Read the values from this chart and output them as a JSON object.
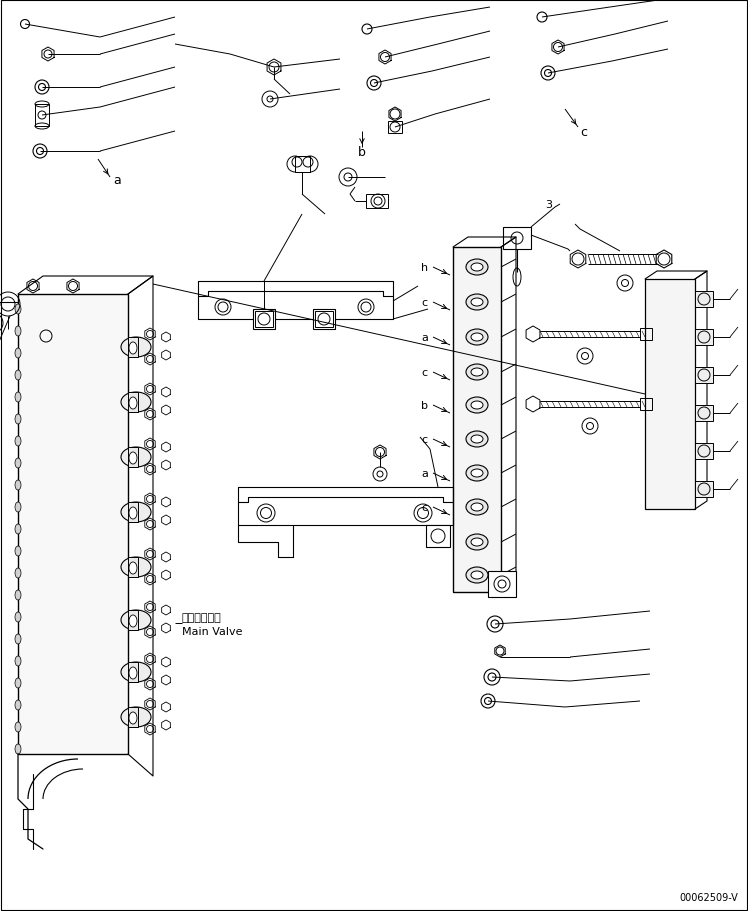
{
  "background_color": "#ffffff",
  "line_color": "#000000",
  "fig_width": 7.48,
  "fig_height": 9.12,
  "dpi": 100,
  "part_number": "00062509-V",
  "label_a": "a",
  "label_b": "b",
  "label_c": "c",
  "label_h": "h",
  "label_3": "3",
  "main_valve_ja": "メインバルブ",
  "main_valve_en": "Main Valve"
}
